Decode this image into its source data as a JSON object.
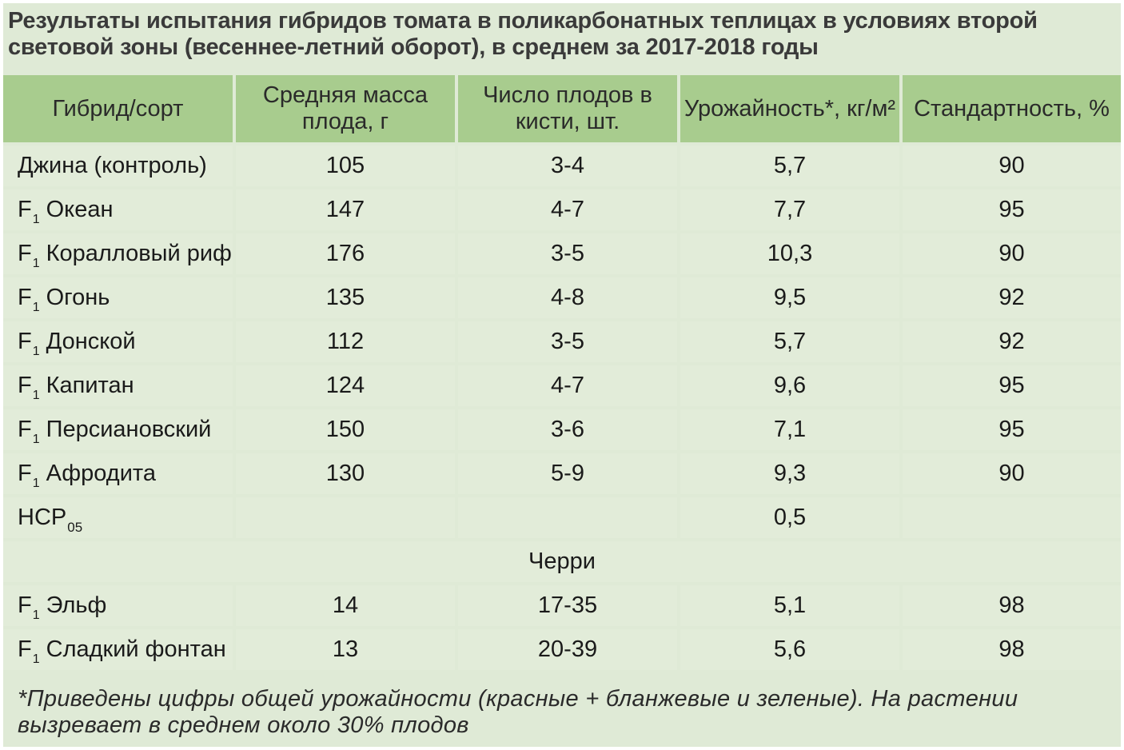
{
  "title": "Результаты испытания гибридов томата в поликарбонатных теплицах в условиях второй световой зоны (весеннее-летний оборот), в среднем за 2017-2018 годы",
  "headers": [
    "Гибрид/сорт",
    "Средняя масса плода, г",
    "Число плодов в кисти, шт.",
    "Урожайность*, кг/м²",
    "Стандартность, %"
  ],
  "rows": [
    {
      "prefix": "",
      "sub": "",
      "name": "Джина (контроль)",
      "mass": "105",
      "fruits": "3-4",
      "yield": "5,7",
      "standard": "90"
    },
    {
      "prefix": "F",
      "sub": "1",
      "name": "Океан",
      "mass": "147",
      "fruits": "4-7",
      "yield": "7,7",
      "standard": "95"
    },
    {
      "prefix": "F",
      "sub": "1",
      "name": "Коралловый риф",
      "mass": "176",
      "fruits": "3-5",
      "yield": "10,3",
      "standard": "90"
    },
    {
      "prefix": "F",
      "sub": "1",
      "name": "Огонь",
      "mass": "135",
      "fruits": "4-8",
      "yield": "9,5",
      "standard": "92"
    },
    {
      "prefix": "F",
      "sub": "1",
      "name": "Донской",
      "mass": "112",
      "fruits": "3-5",
      "yield": "5,7",
      "standard": "92"
    },
    {
      "prefix": "F",
      "sub": "1",
      "name": "Капитан",
      "mass": "124",
      "fruits": "4-7",
      "yield": "9,6",
      "standard": "95"
    },
    {
      "prefix": "F",
      "sub": "1",
      "name": "Персиановский",
      "mass": "150",
      "fruits": "3-6",
      "yield": "7,1",
      "standard": "95"
    },
    {
      "prefix": "F",
      "sub": "1",
      "name": "Афродита",
      "mass": "130",
      "fruits": "5-9",
      "yield": "9,3",
      "standard": "90"
    }
  ],
  "nsr": {
    "label": "НСР",
    "sub": "05",
    "yield": "0,5"
  },
  "section_label": "Черри",
  "cherry_rows": [
    {
      "prefix": "F",
      "sub": "1",
      "name": "Эльф",
      "mass": "14",
      "fruits": "17-35",
      "yield": "5,1",
      "standard": "98"
    },
    {
      "prefix": "F",
      "sub": "1",
      "name": "Сладкий фонтан",
      "mass": "13",
      "fruits": "20-39",
      "yield": "5,6",
      "standard": "98"
    }
  ],
  "footnote": "*Приведены цифры общей урожайности (красные + бланжевые и зеленые). На растении вызревает в среднем около 30% плодов",
  "colors": {
    "background": "#dfead6",
    "header": "#a8cc8e",
    "cell": "#e2ecd9",
    "divider": "#ffffff"
  }
}
